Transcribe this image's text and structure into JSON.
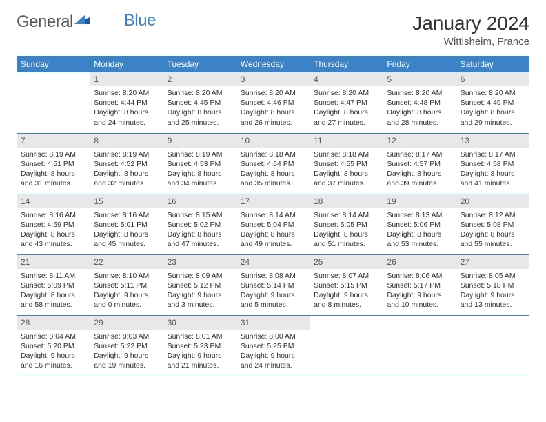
{
  "logo": {
    "text1": "General",
    "text2": "Blue"
  },
  "title": "January 2024",
  "location": "Wittisheim, France",
  "colors": {
    "header_bg": "#3b82c7",
    "header_text": "#ffffff",
    "daynum_bg": "#e8e8e8",
    "border": "#3b82c7",
    "text": "#333333"
  },
  "weekdays": [
    "Sunday",
    "Monday",
    "Tuesday",
    "Wednesday",
    "Thursday",
    "Friday",
    "Saturday"
  ],
  "weeks": [
    [
      {
        "n": "",
        "sunrise": "",
        "sunset": "",
        "daylight": ""
      },
      {
        "n": "1",
        "sunrise": "Sunrise: 8:20 AM",
        "sunset": "Sunset: 4:44 PM",
        "daylight": "Daylight: 8 hours and 24 minutes."
      },
      {
        "n": "2",
        "sunrise": "Sunrise: 8:20 AM",
        "sunset": "Sunset: 4:45 PM",
        "daylight": "Daylight: 8 hours and 25 minutes."
      },
      {
        "n": "3",
        "sunrise": "Sunrise: 8:20 AM",
        "sunset": "Sunset: 4:46 PM",
        "daylight": "Daylight: 8 hours and 26 minutes."
      },
      {
        "n": "4",
        "sunrise": "Sunrise: 8:20 AM",
        "sunset": "Sunset: 4:47 PM",
        "daylight": "Daylight: 8 hours and 27 minutes."
      },
      {
        "n": "5",
        "sunrise": "Sunrise: 8:20 AM",
        "sunset": "Sunset: 4:48 PM",
        "daylight": "Daylight: 8 hours and 28 minutes."
      },
      {
        "n": "6",
        "sunrise": "Sunrise: 8:20 AM",
        "sunset": "Sunset: 4:49 PM",
        "daylight": "Daylight: 8 hours and 29 minutes."
      }
    ],
    [
      {
        "n": "7",
        "sunrise": "Sunrise: 8:19 AM",
        "sunset": "Sunset: 4:51 PM",
        "daylight": "Daylight: 8 hours and 31 minutes."
      },
      {
        "n": "8",
        "sunrise": "Sunrise: 8:19 AM",
        "sunset": "Sunset: 4:52 PM",
        "daylight": "Daylight: 8 hours and 32 minutes."
      },
      {
        "n": "9",
        "sunrise": "Sunrise: 8:19 AM",
        "sunset": "Sunset: 4:53 PM",
        "daylight": "Daylight: 8 hours and 34 minutes."
      },
      {
        "n": "10",
        "sunrise": "Sunrise: 8:18 AM",
        "sunset": "Sunset: 4:54 PM",
        "daylight": "Daylight: 8 hours and 35 minutes."
      },
      {
        "n": "11",
        "sunrise": "Sunrise: 8:18 AM",
        "sunset": "Sunset: 4:55 PM",
        "daylight": "Daylight: 8 hours and 37 minutes."
      },
      {
        "n": "12",
        "sunrise": "Sunrise: 8:17 AM",
        "sunset": "Sunset: 4:57 PM",
        "daylight": "Daylight: 8 hours and 39 minutes."
      },
      {
        "n": "13",
        "sunrise": "Sunrise: 8:17 AM",
        "sunset": "Sunset: 4:58 PM",
        "daylight": "Daylight: 8 hours and 41 minutes."
      }
    ],
    [
      {
        "n": "14",
        "sunrise": "Sunrise: 8:16 AM",
        "sunset": "Sunset: 4:59 PM",
        "daylight": "Daylight: 8 hours and 43 minutes."
      },
      {
        "n": "15",
        "sunrise": "Sunrise: 8:16 AM",
        "sunset": "Sunset: 5:01 PM",
        "daylight": "Daylight: 8 hours and 45 minutes."
      },
      {
        "n": "16",
        "sunrise": "Sunrise: 8:15 AM",
        "sunset": "Sunset: 5:02 PM",
        "daylight": "Daylight: 8 hours and 47 minutes."
      },
      {
        "n": "17",
        "sunrise": "Sunrise: 8:14 AM",
        "sunset": "Sunset: 5:04 PM",
        "daylight": "Daylight: 8 hours and 49 minutes."
      },
      {
        "n": "18",
        "sunrise": "Sunrise: 8:14 AM",
        "sunset": "Sunset: 5:05 PM",
        "daylight": "Daylight: 8 hours and 51 minutes."
      },
      {
        "n": "19",
        "sunrise": "Sunrise: 8:13 AM",
        "sunset": "Sunset: 5:06 PM",
        "daylight": "Daylight: 8 hours and 53 minutes."
      },
      {
        "n": "20",
        "sunrise": "Sunrise: 8:12 AM",
        "sunset": "Sunset: 5:08 PM",
        "daylight": "Daylight: 8 hours and 55 minutes."
      }
    ],
    [
      {
        "n": "21",
        "sunrise": "Sunrise: 8:11 AM",
        "sunset": "Sunset: 5:09 PM",
        "daylight": "Daylight: 8 hours and 58 minutes."
      },
      {
        "n": "22",
        "sunrise": "Sunrise: 8:10 AM",
        "sunset": "Sunset: 5:11 PM",
        "daylight": "Daylight: 9 hours and 0 minutes."
      },
      {
        "n": "23",
        "sunrise": "Sunrise: 8:09 AM",
        "sunset": "Sunset: 5:12 PM",
        "daylight": "Daylight: 9 hours and 3 minutes."
      },
      {
        "n": "24",
        "sunrise": "Sunrise: 8:08 AM",
        "sunset": "Sunset: 5:14 PM",
        "daylight": "Daylight: 9 hours and 5 minutes."
      },
      {
        "n": "25",
        "sunrise": "Sunrise: 8:07 AM",
        "sunset": "Sunset: 5:15 PM",
        "daylight": "Daylight: 9 hours and 8 minutes."
      },
      {
        "n": "26",
        "sunrise": "Sunrise: 8:06 AM",
        "sunset": "Sunset: 5:17 PM",
        "daylight": "Daylight: 9 hours and 10 minutes."
      },
      {
        "n": "27",
        "sunrise": "Sunrise: 8:05 AM",
        "sunset": "Sunset: 5:18 PM",
        "daylight": "Daylight: 9 hours and 13 minutes."
      }
    ],
    [
      {
        "n": "28",
        "sunrise": "Sunrise: 8:04 AM",
        "sunset": "Sunset: 5:20 PM",
        "daylight": "Daylight: 9 hours and 16 minutes."
      },
      {
        "n": "29",
        "sunrise": "Sunrise: 8:03 AM",
        "sunset": "Sunset: 5:22 PM",
        "daylight": "Daylight: 9 hours and 19 minutes."
      },
      {
        "n": "30",
        "sunrise": "Sunrise: 8:01 AM",
        "sunset": "Sunset: 5:23 PM",
        "daylight": "Daylight: 9 hours and 21 minutes."
      },
      {
        "n": "31",
        "sunrise": "Sunrise: 8:00 AM",
        "sunset": "Sunset: 5:25 PM",
        "daylight": "Daylight: 9 hours and 24 minutes."
      },
      {
        "n": "",
        "sunrise": "",
        "sunset": "",
        "daylight": ""
      },
      {
        "n": "",
        "sunrise": "",
        "sunset": "",
        "daylight": ""
      },
      {
        "n": "",
        "sunrise": "",
        "sunset": "",
        "daylight": ""
      }
    ]
  ]
}
